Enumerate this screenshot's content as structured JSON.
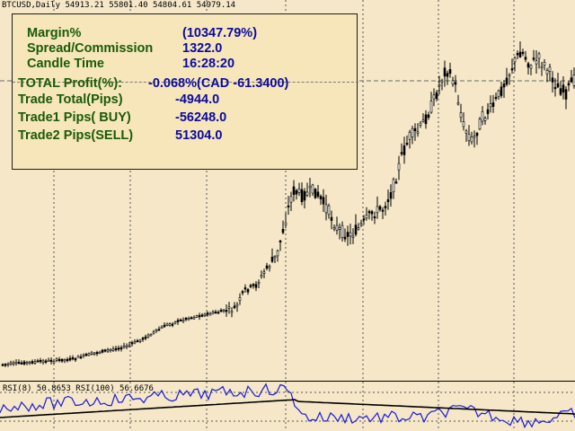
{
  "chart": {
    "title": "BTCUSD,Daily  54913.21 55801.40 54804.61 54979.14",
    "colors": {
      "background": "#f5e7c8",
      "candle": "#000000",
      "grid": "#555555"
    }
  },
  "info_panel": {
    "margin_label": "Margin%",
    "margin_value": "(10347.79%)",
    "spread_label": "Spread/Commission",
    "spread_value": "1322.0",
    "candle_time_label": "Candle Time",
    "candle_time_value": "16:28:20",
    "total_profit_label": "TOTAL Profit(%):",
    "total_profit_value": "-0.068%(CAD -61.3400)",
    "trade_total_label": "Trade Total(Pips)",
    "trade_total_value": "-4944.0",
    "trade1_label": "Trade1 Pips( BUY)",
    "trade1_value": "-56248.0",
    "trade2_label": "Trade2 Pips(SELL)",
    "trade2_value": "51304.0",
    "colors": {
      "label": "#1a5a0a",
      "value": "#0a0aa0",
      "panel": "#f6e6b9"
    }
  },
  "rsi": {
    "label": "RSI(8) 50.8653  RSI(100) 56.6676",
    "colors": {
      "fast": "#1a1ad8",
      "slow": "#000000"
    }
  }
}
